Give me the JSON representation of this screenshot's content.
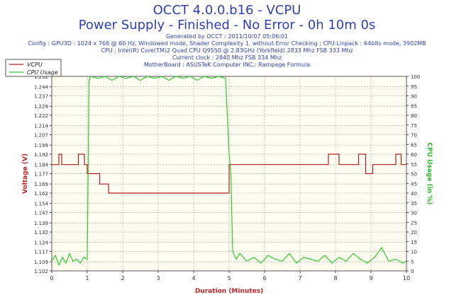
{
  "header": {
    "title": "OCCT 4.0.0.b16 - VCPU",
    "subtitle": "Power Supply - Finished - No Error - 0h 10m 0s",
    "info": [
      "Generated by OCCT : 2011/10/07 05:06:01",
      "Config : GPU3D : 1024 x 768 @ 60 Hz, Windowed mode, Shader Complexity 1, without Error Checking ; CPU:Linpack : 64bits mode, 3902MB",
      "CPU : Intel(R) Core(TM)2 Quad CPU Q9550 @ 2.83GHz (Yorkfield) 2833 Mhz FSB 333 Mhz",
      "Current clock : 2840 Mhz FSB 334 Mhz",
      "MotherBoard : ASUSTeK Computer INC.: Rampage Formula"
    ]
  },
  "colors": {
    "title": "#2e3fb8",
    "vcpu": "#b01c1c",
    "cpu_usage": "#2dcc2d",
    "plot_bg": "#fffdf0",
    "grid": "#b5b5a8",
    "axis_label_y2": "#22bb22",
    "axis_label": "#c82020"
  },
  "chart_data": {
    "type": "line",
    "xlabel": "Duration (Minutes)",
    "ylabel": "Voltage (V)",
    "y2label": "CPU Usage (in %)",
    "xlim": [
      0,
      10
    ],
    "ylim": [
      1.102,
      1.252
    ],
    "y2lim": [
      0,
      100
    ],
    "grid": true,
    "legend_position": "top-left",
    "x_ticks": [
      "0",
      "1",
      "2",
      "3",
      "4",
      "5",
      "6",
      "7",
      "8",
      "9",
      "10"
    ],
    "y_ticks": [
      "1.102",
      "1.109",
      "1.117",
      "1.124",
      "1.132",
      "1.139",
      "1.147",
      "1.154",
      "1.162",
      "1.169",
      "1.177",
      "1.184",
      "1.192",
      "1.199",
      "1.207",
      "1.214",
      "1.222",
      "1.229",
      "1.237",
      "1.244",
      "1.252"
    ],
    "y2_ticks": [
      "0",
      "5",
      "10",
      "15",
      "20",
      "25",
      "30",
      "35",
      "40",
      "45",
      "50",
      "55",
      "60",
      "65",
      "70",
      "75",
      "80",
      "85",
      "90",
      "95",
      "100"
    ],
    "series": [
      {
        "name": "VCPU",
        "axis": "left",
        "x": [
          0.0,
          0.2,
          0.2,
          0.28,
          0.28,
          0.75,
          0.75,
          0.92,
          0.92,
          1.0,
          1.0,
          1.35,
          1.35,
          1.6,
          1.6,
          2.0,
          2.5,
          3.0,
          3.5,
          4.0,
          4.5,
          5.0,
          5.0,
          5.1,
          5.1,
          7.8,
          7.8,
          8.1,
          8.1,
          8.65,
          8.65,
          8.85,
          8.85,
          9.05,
          9.05,
          9.7,
          9.7,
          9.85,
          9.85,
          10.0
        ],
        "y": [
          1.184,
          1.184,
          1.192,
          1.192,
          1.184,
          1.184,
          1.192,
          1.192,
          1.184,
          1.184,
          1.177,
          1.177,
          1.169,
          1.169,
          1.162,
          1.162,
          1.162,
          1.162,
          1.162,
          1.162,
          1.162,
          1.162,
          1.184,
          1.184,
          1.184,
          1.184,
          1.192,
          1.192,
          1.184,
          1.184,
          1.192,
          1.192,
          1.177,
          1.177,
          1.184,
          1.184,
          1.192,
          1.192,
          1.184,
          1.184
        ]
      },
      {
        "name": "CPU Usage",
        "axis": "right",
        "x": [
          0.0,
          0.1,
          0.2,
          0.3,
          0.4,
          0.5,
          0.6,
          0.7,
          0.8,
          0.9,
          1.0,
          1.05,
          1.1,
          1.3,
          1.5,
          1.7,
          1.9,
          2.1,
          2.3,
          2.5,
          2.7,
          2.9,
          3.1,
          3.3,
          3.5,
          3.7,
          3.9,
          4.1,
          4.3,
          4.5,
          4.7,
          4.9,
          5.0,
          5.05,
          5.1,
          5.2,
          5.3,
          5.5,
          5.7,
          5.9,
          6.1,
          6.3,
          6.5,
          6.7,
          6.9,
          7.1,
          7.3,
          7.5,
          7.7,
          7.9,
          8.1,
          8.3,
          8.5,
          8.7,
          8.9,
          9.1,
          9.3,
          9.5,
          9.7,
          9.9,
          10.0
        ],
        "y": [
          5,
          8,
          3,
          7,
          4,
          9,
          5,
          6,
          4,
          7,
          6,
          98,
          100,
          99,
          100,
          98,
          100,
          99,
          100,
          98,
          100,
          99,
          100,
          98,
          100,
          99,
          100,
          98,
          100,
          99,
          100,
          99,
          60,
          50,
          10,
          6,
          9,
          5,
          7,
          4,
          8,
          6,
          5,
          9,
          4,
          7,
          6,
          5,
          8,
          4,
          7,
          5,
          9,
          6,
          4,
          7,
          12,
          5,
          6,
          4,
          5
        ]
      }
    ]
  }
}
